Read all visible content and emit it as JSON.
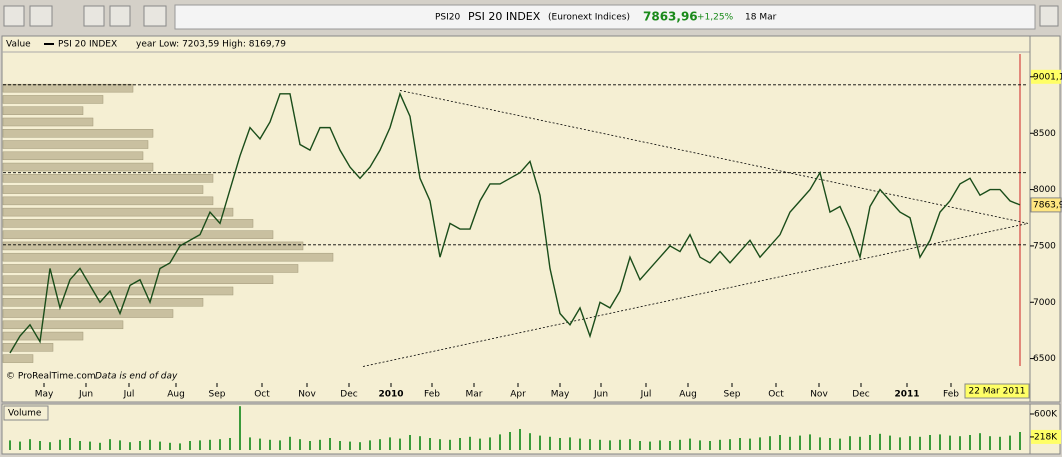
{
  "toolbar": {
    "symbol": "PSI20",
    "name": "PSI 20 INDEX",
    "market": "(Euronext Indices)",
    "price": "7863,96",
    "change": "+1,25%",
    "date": "18 Mar"
  },
  "chart_data": {
    "type": "line",
    "legend_label": "Value",
    "series_name": "PSI 20 INDEX",
    "stats": "year Low: 7203,59 High: 8169,79",
    "credit": "© ProRealTime.com",
    "note": "Data is end of day",
    "end_label": "22 Mar 2011",
    "xlim": [
      -0.7,
      101.8
    ],
    "xticks": [
      {
        "value": 3.4,
        "label": "May"
      },
      {
        "value": 7.6,
        "label": "Jun"
      },
      {
        "value": 11.9,
        "label": "Jul"
      },
      {
        "value": 16.6,
        "label": "Aug"
      },
      {
        "value": 20.7,
        "label": "Sep"
      },
      {
        "value": 25.2,
        "label": "Oct"
      },
      {
        "value": 29.7,
        "label": "Nov"
      },
      {
        "value": 33.9,
        "label": "Dec"
      },
      {
        "value": 38.1,
        "label": "2010"
      },
      {
        "value": 42.2,
        "label": "Feb"
      },
      {
        "value": 46.4,
        "label": "Mar"
      },
      {
        "value": 50.8,
        "label": "Apr"
      },
      {
        "value": 55,
        "label": "May"
      },
      {
        "value": 59.1,
        "label": "Jun"
      },
      {
        "value": 63.6,
        "label": "Jul"
      },
      {
        "value": 67.8,
        "label": "Aug"
      },
      {
        "value": 72.2,
        "label": "Sep"
      },
      {
        "value": 76.6,
        "label": "Oct"
      },
      {
        "value": 80.9,
        "label": "Nov"
      },
      {
        "value": 85.1,
        "label": "Dec"
      },
      {
        "value": 89.7,
        "label": "2011"
      },
      {
        "value": 94.1,
        "label": "Feb"
      }
    ],
    "ylim": [
      6310,
      9230
    ],
    "yticks": [
      {
        "value": 9001.1,
        "label": "9001,1"
      },
      8500,
      8000,
      7500,
      7000,
      6500
    ],
    "last_price": {
      "value": 7863.96,
      "label": "7863,9"
    },
    "color": "#1a4d1a",
    "values": [
      6550,
      6700,
      6800,
      6650,
      7300,
      6950,
      7200,
      7300,
      7150,
      7000,
      7100,
      6900,
      7150,
      7200,
      7000,
      7300,
      7350,
      7500,
      7550,
      7600,
      7800,
      7700,
      8000,
      8300,
      8550,
      8450,
      8600,
      8850,
      8850,
      8400,
      8350,
      8550,
      8550,
      8350,
      8200,
      8100,
      8200,
      8350,
      8550,
      8850,
      8650,
      8100,
      7900,
      7400,
      7700,
      7650,
      7650,
      7900,
      8050,
      8050,
      8100,
      8150,
      8250,
      7950,
      7300,
      6900,
      6800,
      6950,
      6700,
      7000,
      6950,
      7100,
      7400,
      7200,
      7300,
      7400,
      7500,
      7450,
      7600,
      7400,
      7350,
      7450,
      7350,
      7450,
      7550,
      7400,
      7500,
      7600,
      7800,
      7900,
      8000,
      8150,
      7800,
      7850,
      7650,
      7400,
      7850,
      8000,
      7900,
      7800,
      7750,
      7400,
      7550,
      7800,
      7900,
      8050,
      8100,
      7950,
      8000,
      8000,
      7900,
      7863.96
    ],
    "levels": [
      8930,
      8150,
      7510
    ],
    "trendlines": [
      [
        [
          39,
          8880
        ],
        [
          101.8,
          7700
        ]
      ],
      [
        [
          35.3,
          6430
        ],
        [
          101.8,
          7700
        ]
      ]
    ],
    "profile": {
      "color": "#c9c0a0",
      "levels": [
        8900,
        8800,
        8700,
        8600,
        8500,
        8400,
        8300,
        8200,
        8100,
        8000,
        7900,
        7800,
        7700,
        7600,
        7500,
        7400,
        7300,
        7200,
        7100,
        7000,
        6900,
        6800,
        6700,
        6600,
        6500
      ],
      "values": [
        130,
        100,
        80,
        90,
        150,
        145,
        140,
        150,
        210,
        200,
        210,
        230,
        250,
        270,
        300,
        330,
        295,
        270,
        230,
        200,
        170,
        120,
        80,
        50,
        30
      ]
    },
    "volume": {
      "label": "Volume",
      "color": "#3a9a3a",
      "ylim": [
        0,
        733
      ],
      "yticks": [
        {
          "value": 600,
          "label": "600K"
        },
        {
          "value": 218,
          "label": "218K"
        }
      ],
      "values": [
        160,
        140,
        180,
        150,
        130,
        170,
        200,
        150,
        140,
        120,
        180,
        160,
        130,
        150,
        170,
        140,
        120,
        110,
        150,
        160,
        170,
        180,
        200,
        730,
        210,
        190,
        170,
        160,
        220,
        180,
        150,
        170,
        200,
        150,
        140,
        130,
        160,
        180,
        210,
        190,
        250,
        230,
        200,
        180,
        170,
        200,
        220,
        190,
        210,
        260,
        300,
        350,
        280,
        240,
        220,
        200,
        210,
        190,
        180,
        170,
        160,
        170,
        180,
        150,
        140,
        160,
        150,
        170,
        190,
        160,
        150,
        170,
        180,
        200,
        190,
        210,
        230,
        250,
        220,
        240,
        260,
        210,
        200,
        190,
        230,
        220,
        250,
        270,
        240,
        210,
        230,
        220,
        250,
        260,
        240,
        230,
        250,
        280,
        230,
        220,
        240,
        300
      ]
    }
  }
}
